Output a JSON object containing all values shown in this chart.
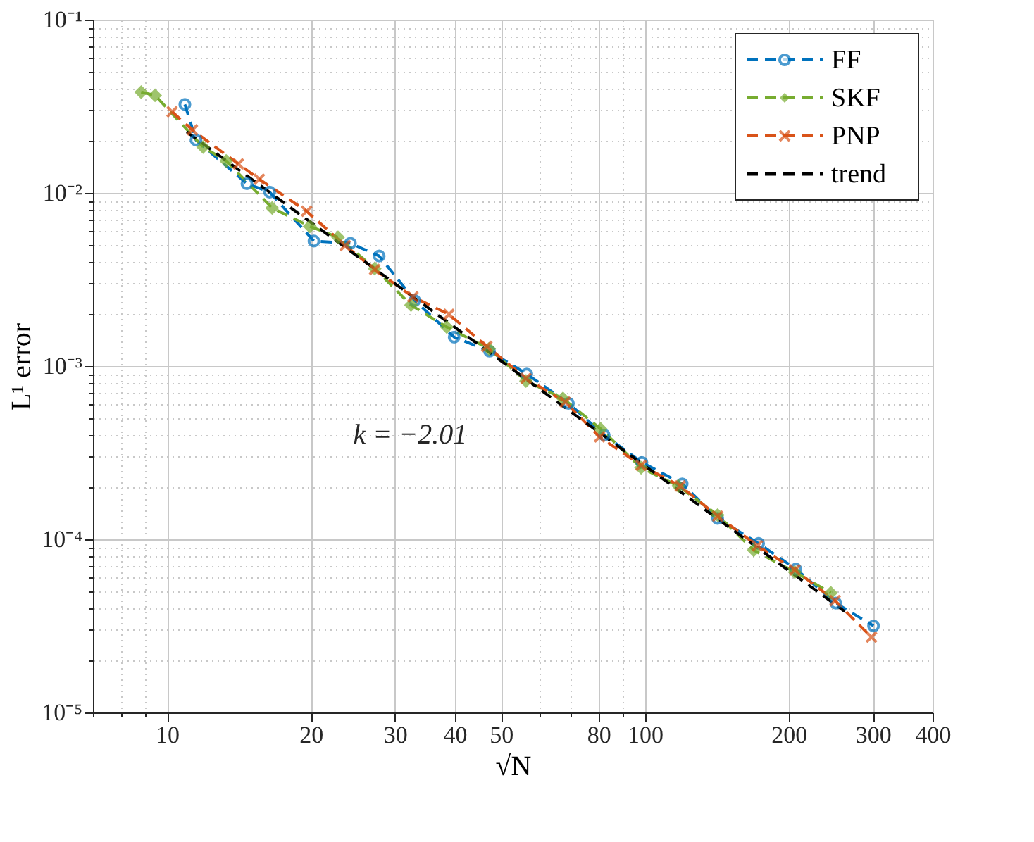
{
  "chart_data": {
    "type": "line",
    "xlabel": "√N",
    "ylabel": "L¹ error",
    "log": "xy",
    "grid": true,
    "legend": "top right",
    "line_style": "dashed",
    "xlim": [
      7,
      400
    ],
    "ylim": [
      1e-05,
      0.1
    ],
    "xticks": [
      {
        "value": 7,
        "label": null
      },
      {
        "value": 8,
        "label": null
      },
      {
        "value": 9,
        "label": null
      },
      10,
      20,
      30,
      40,
      50,
      {
        "value": 60,
        "label": null
      },
      {
        "value": 70,
        "label": null
      },
      80,
      {
        "value": 90,
        "label": null
      },
      100,
      200,
      300,
      400
    ],
    "yticks": [
      {
        "value": 1e-05,
        "label": "10⁻⁵"
      },
      {
        "value": 2e-05,
        "label": null
      },
      {
        "value": 3e-05,
        "label": null
      },
      {
        "value": 4e-05,
        "label": null
      },
      {
        "value": 5e-05,
        "label": null
      },
      {
        "value": 6e-05,
        "label": null
      },
      {
        "value": 7e-05,
        "label": null
      },
      {
        "value": 8e-05,
        "label": null
      },
      {
        "value": 9e-05,
        "label": null
      },
      {
        "value": 0.0001,
        "label": "10⁻⁴"
      },
      {
        "value": 0.0002,
        "label": null
      },
      {
        "value": 0.0003,
        "label": null
      },
      {
        "value": 0.0004,
        "label": null
      },
      {
        "value": 0.0005,
        "label": null
      },
      {
        "value": 0.0006,
        "label": null
      },
      {
        "value": 0.0007,
        "label": null
      },
      {
        "value": 0.0008,
        "label": null
      },
      {
        "value": 0.0009,
        "label": null
      },
      {
        "value": 0.001,
        "label": "10⁻³"
      },
      {
        "value": 0.002,
        "label": null
      },
      {
        "value": 0.003,
        "label": null
      },
      {
        "value": 0.004,
        "label": null
      },
      {
        "value": 0.005,
        "label": null
      },
      {
        "value": 0.006,
        "label": null
      },
      {
        "value": 0.007,
        "label": null
      },
      {
        "value": 0.008,
        "label": null
      },
      {
        "value": 0.009,
        "label": null
      },
      {
        "value": 0.01,
        "label": "10⁻²"
      },
      {
        "value": 0.02,
        "label": null
      },
      {
        "value": 0.03,
        "label": null
      },
      {
        "value": 0.04,
        "label": null
      },
      {
        "value": 0.05,
        "label": null
      },
      {
        "value": 0.06,
        "label": null
      },
      {
        "value": 0.07,
        "label": null
      },
      {
        "value": 0.08,
        "label": null
      },
      {
        "value": 0.09,
        "label": null
      },
      {
        "value": 0.1,
        "label": "10⁻¹"
      }
    ],
    "annotations": [
      "k = −2.01"
    ],
    "series": [
      {
        "name": "FF",
        "color": "#0072bd",
        "marker": "circle",
        "x": [
          10.9,
          11.5,
          14.7,
          16.4,
          20.3,
          24.2,
          27.8,
          33.0,
          39.9,
          47.3,
          56.6,
          69.2,
          82.2,
          98.6,
          119.7,
          142,
          173,
          207,
          251,
          301
        ],
        "values": [
          0.0324,
          0.0202,
          0.0113,
          0.0101,
          0.00527,
          0.00512,
          0.00432,
          0.00239,
          0.00147,
          0.00122,
          0.0009,
          0.00061,
          0.0004,
          0.000278,
          0.000209,
          0.000132,
          9.46e-05,
          6.73e-05,
          4.28e-05,
          3.16e-05
        ]
      },
      {
        "name": "SKF",
        "color": "#77ac30",
        "marker": "diamond",
        "x": [
          8.83,
          9.44,
          11.9,
          13.3,
          16.6,
          19.9,
          22.8,
          27.2,
          32.4,
          38.5,
          47.2,
          56.4,
          67.4,
          80.8,
          98.2,
          117.5,
          142,
          169,
          206,
          245
        ],
        "values": [
          0.0382,
          0.0366,
          0.0184,
          0.0153,
          0.00818,
          0.00641,
          0.00554,
          0.00366,
          0.00225,
          0.00168,
          0.00126,
          0.00082,
          0.00065,
          0.000434,
          0.000259,
          0.000203,
          0.000138,
          8.65e-05,
          6.46e-05,
          4.9e-05
        ]
      },
      {
        "name": "PNP",
        "color": "#d95319",
        "marker": "cross",
        "x": [
          10.25,
          11.3,
          14.1,
          15.6,
          19.6,
          23.6,
          27.2,
          32.7,
          38.9,
          46.7,
          56.4,
          68.1,
          80.4,
          98.2,
          118.6,
          142,
          172,
          206,
          250,
          298
        ],
        "values": [
          0.0294,
          0.0231,
          0.0147,
          0.012,
          0.00784,
          0.00497,
          0.00361,
          0.00251,
          0.00199,
          0.0013,
          0.00085,
          0.00062,
          0.00039,
          0.000267,
          0.000203,
          0.000136,
          9.18e-05,
          6.65e-05,
          4.42e-05,
          2.72e-05
        ]
      },
      {
        "name": "trend",
        "color": "#000000",
        "marker": "none",
        "x": [
          11,
          262
        ],
        "values": [
          0.0225,
          3.83e-05
        ]
      }
    ]
  }
}
